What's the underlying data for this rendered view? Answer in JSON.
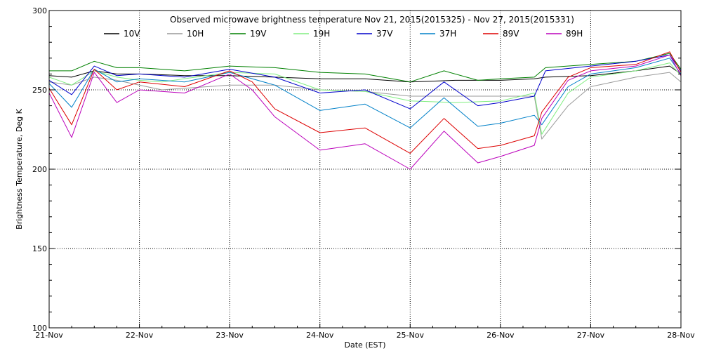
{
  "chart_data": {
    "type": "line",
    "title": "Observed microwave brightness temperature Nov 21, 2015(2015325) - Nov 27, 2015(2015331)",
    "xlabel": "Date (EST)",
    "ylabel": "Brightness Temperature, Deg K",
    "xlim": [
      "2015-11-21",
      "2015-11-28"
    ],
    "ylim": [
      100,
      300
    ],
    "x_ticks": [
      "21-Nov",
      "22-Nov",
      "23-Nov",
      "24-Nov",
      "25-Nov",
      "26-Nov",
      "27-Nov",
      "28-Nov"
    ],
    "y_ticks": [
      100,
      150,
      200,
      250,
      300
    ],
    "grid": true,
    "legend_position": "top",
    "series": [
      {
        "name": "10V",
        "color": "#000000",
        "x": [
          "2015-11-21 00:00",
          "2015-11-21 06:00",
          "2015-11-21 12:00",
          "2015-11-21 18:00",
          "2015-11-22 00:00",
          "2015-11-22 12:00",
          "2015-11-23 00:00",
          "2015-11-23 12:00",
          "2015-11-24 00:00",
          "2015-11-24 12:00",
          "2015-11-25 00:00",
          "2015-11-25 12:00",
          "2015-11-26 00:00",
          "2015-11-26 09:00",
          "2015-11-26 12:00",
          "2015-11-27 00:00",
          "2015-11-27 12:00",
          "2015-11-27 21:00",
          "2015-11-28 00:00"
        ],
        "y": [
          259,
          258,
          262,
          260,
          260,
          259,
          259,
          258,
          257,
          257,
          255,
          256,
          256,
          257,
          258,
          259,
          262,
          265,
          260
        ]
      },
      {
        "name": "10H",
        "color": "#999999",
        "x": [
          "2015-11-21 00:00",
          "2015-11-21 06:00",
          "2015-11-21 12:00",
          "2015-11-21 18:00",
          "2015-11-22 00:00",
          "2015-11-22 06:00",
          "2015-11-22 12:00",
          "2015-11-23 00:00",
          "2015-11-23 12:00",
          "2015-11-24 00:00",
          "2015-11-24 12:00",
          "2015-11-25 00:00",
          "2015-11-25 12:00",
          "2015-11-26 00:00",
          "2015-11-26 09:00",
          "2015-11-26 11:00",
          "2015-11-26 18:00",
          "2015-11-27 00:00",
          "2015-11-27 12:00",
          "2015-11-27 21:00",
          "2015-11-28 00:00"
        ],
        "y": [
          255,
          253,
          258,
          256,
          253,
          250,
          251,
          253,
          253,
          250,
          249,
          246,
          246,
          246,
          246,
          219,
          240,
          252,
          258,
          261,
          255
        ]
      },
      {
        "name": "19V",
        "color": "#008000",
        "x": [
          "2015-11-21 00:00",
          "2015-11-21 06:00",
          "2015-11-21 12:00",
          "2015-11-21 18:00",
          "2015-11-22 00:00",
          "2015-11-22 12:00",
          "2015-11-23 00:00",
          "2015-11-23 12:00",
          "2015-11-24 00:00",
          "2015-11-24 12:00",
          "2015-11-25 00:00",
          "2015-11-25 09:00",
          "2015-11-25 18:00",
          "2015-11-26 00:00",
          "2015-11-26 09:00",
          "2015-11-26 12:00",
          "2015-11-27 00:00",
          "2015-11-27 12:00",
          "2015-11-27 21:00",
          "2015-11-28 00:00"
        ],
        "y": [
          262,
          262,
          268,
          264,
          264,
          262,
          265,
          264,
          261,
          260,
          255,
          262,
          256,
          257,
          258,
          264,
          266,
          268,
          273,
          263
        ]
      },
      {
        "name": "19H",
        "color": "#80ee80",
        "x": [
          "2015-11-21 00:00",
          "2015-11-21 06:00",
          "2015-11-21 12:00",
          "2015-11-21 18:00",
          "2015-11-22 00:00",
          "2015-11-22 06:00",
          "2015-11-23 00:00",
          "2015-11-23 12:00",
          "2015-11-24 00:00",
          "2015-11-24 12:00",
          "2015-11-25 00:00",
          "2015-11-25 12:00",
          "2015-11-26 00:00",
          "2015-11-26 09:00",
          "2015-11-26 11:00",
          "2015-11-26 18:00",
          "2015-11-27 00:00",
          "2015-11-27 12:00",
          "2015-11-27 21:00",
          "2015-11-28 00:00"
        ],
        "y": [
          258,
          253,
          262,
          258,
          256,
          255,
          261,
          260,
          250,
          249,
          243,
          242,
          243,
          248,
          222,
          248,
          258,
          262,
          267,
          259
        ]
      },
      {
        "name": "37V",
        "color": "#0000cc",
        "x": [
          "2015-11-21 00:00",
          "2015-11-21 06:00",
          "2015-11-21 12:00",
          "2015-11-21 18:00",
          "2015-11-22 00:00",
          "2015-11-22 12:00",
          "2015-11-23 00:00",
          "2015-11-23 12:00",
          "2015-11-24 00:00",
          "2015-11-24 12:00",
          "2015-11-25 00:00",
          "2015-11-25 09:00",
          "2015-11-25 18:00",
          "2015-11-26 00:00",
          "2015-11-26 09:00",
          "2015-11-26 12:00",
          "2015-11-27 00:00",
          "2015-11-27 12:00",
          "2015-11-27 21:00",
          "2015-11-28 00:00"
        ],
        "y": [
          256,
          247,
          265,
          259,
          260,
          258,
          263,
          258,
          248,
          250,
          238,
          255,
          240,
          242,
          246,
          262,
          265,
          268,
          272,
          262
        ]
      },
      {
        "name": "37H",
        "color": "#0080c8",
        "x": [
          "2015-11-21 00:00",
          "2015-11-21 06:00",
          "2015-11-21 12:00",
          "2015-11-21 18:00",
          "2015-11-22 00:00",
          "2015-11-22 12:00",
          "2015-11-23 00:00",
          "2015-11-23 12:00",
          "2015-11-24 00:00",
          "2015-11-24 12:00",
          "2015-11-25 00:00",
          "2015-11-25 09:00",
          "2015-11-25 18:00",
          "2015-11-26 00:00",
          "2015-11-26 09:00",
          "2015-11-26 11:00",
          "2015-11-26 18:00",
          "2015-11-27 00:00",
          "2015-11-27 12:00",
          "2015-11-27 21:00",
          "2015-11-28 00:00"
        ],
        "y": [
          254,
          239,
          263,
          255,
          257,
          255,
          261,
          253,
          237,
          241,
          226,
          245,
          227,
          229,
          234,
          228,
          252,
          260,
          264,
          270,
          260
        ]
      },
      {
        "name": "89V",
        "color": "#dd0000",
        "x": [
          "2015-11-21 00:00",
          "2015-11-21 06:00",
          "2015-11-21 12:00",
          "2015-11-21 18:00",
          "2015-11-22 00:00",
          "2015-11-22 12:00",
          "2015-11-23 00:00",
          "2015-11-23 06:00",
          "2015-11-23 12:00",
          "2015-11-24 00:00",
          "2015-11-24 12:00",
          "2015-11-25 00:00",
          "2015-11-25 09:00",
          "2015-11-25 18:00",
          "2015-11-26 00:00",
          "2015-11-26 09:00",
          "2015-11-26 11:00",
          "2015-11-26 18:00",
          "2015-11-27 00:00",
          "2015-11-27 12:00",
          "2015-11-27 21:00",
          "2015-11-28 00:00"
        ],
        "y": [
          251,
          228,
          263,
          250,
          255,
          252,
          262,
          255,
          238,
          223,
          226,
          210,
          232,
          213,
          215,
          221,
          236,
          258,
          264,
          266,
          274,
          261
        ]
      },
      {
        "name": "89H",
        "color": "#bb00bb",
        "x": [
          "2015-11-21 00:00",
          "2015-11-21 06:00",
          "2015-11-21 12:00",
          "2015-11-21 18:00",
          "2015-11-22 00:00",
          "2015-11-22 12:00",
          "2015-11-23 00:00",
          "2015-11-23 06:00",
          "2015-11-23 12:00",
          "2015-11-24 00:00",
          "2015-11-24 12:00",
          "2015-11-25 00:00",
          "2015-11-25 09:00",
          "2015-11-25 18:00",
          "2015-11-26 00:00",
          "2015-11-26 09:00",
          "2015-11-26 11:00",
          "2015-11-26 18:00",
          "2015-11-27 00:00",
          "2015-11-27 12:00",
          "2015-11-27 21:00",
          "2015-11-28 00:00"
        ],
        "y": [
          248,
          220,
          261,
          242,
          250,
          248,
          260,
          250,
          233,
          212,
          216,
          200,
          224,
          204,
          208,
          215,
          232,
          256,
          262,
          265,
          272,
          259
        ]
      }
    ]
  }
}
